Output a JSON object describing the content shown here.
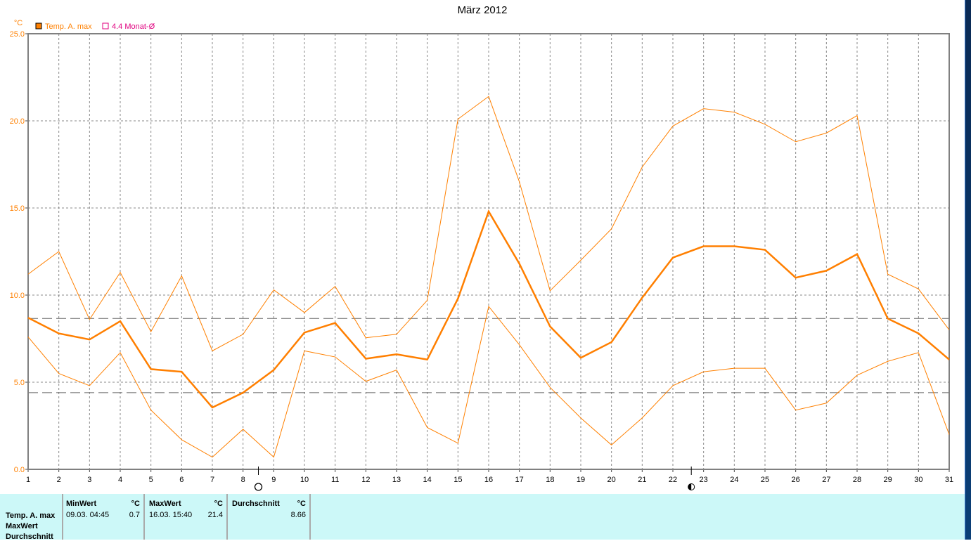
{
  "chart_data": {
    "type": "line",
    "title": "März 2012",
    "ylabel": "°C",
    "ylim": [
      0,
      25
    ],
    "yticks": [
      "0.0",
      "5.0",
      "10.0",
      "15.0",
      "20.0",
      "25.0"
    ],
    "xlim": [
      1,
      31
    ],
    "categories": [
      1,
      2,
      3,
      4,
      5,
      6,
      7,
      8,
      9,
      10,
      11,
      12,
      13,
      14,
      15,
      16,
      17,
      18,
      19,
      20,
      21,
      22,
      23,
      24,
      25,
      26,
      27,
      28,
      29,
      30,
      31
    ],
    "grid": true,
    "legend": {
      "placement": "top-left",
      "entries": [
        {
          "label": "Temp. A. max",
          "color": "#ff8000",
          "symbol": "filled-square"
        },
        {
          "label": "4.4 Monat-Ø",
          "color": "#e0007f",
          "symbol": "open-square"
        }
      ]
    },
    "series": [
      {
        "name": "Temp. A. max",
        "role": "mean",
        "color": "#ff7f00",
        "values": [
          8.7,
          7.8,
          7.45,
          8.5,
          5.75,
          5.6,
          3.55,
          4.4,
          5.7,
          7.85,
          8.4,
          6.35,
          6.6,
          6.3,
          9.8,
          14.8,
          11.8,
          8.2,
          6.4,
          7.3,
          9.85,
          12.15,
          12.8,
          12.8,
          12.6,
          11.0,
          11.4,
          12.35,
          8.65,
          7.8,
          6.3
        ]
      },
      {
        "role": "max",
        "color": "#ff8000",
        "values": [
          11.2,
          12.5,
          8.6,
          11.3,
          7.9,
          11.1,
          6.8,
          7.75,
          10.3,
          9.0,
          10.5,
          7.55,
          7.75,
          9.7,
          20.1,
          21.4,
          16.5,
          10.25,
          12.0,
          13.8,
          17.35,
          19.7,
          20.7,
          20.5,
          19.8,
          18.8,
          19.3,
          20.3,
          11.2,
          10.35,
          8.0
        ]
      },
      {
        "role": "min",
        "color": "#ff8000",
        "values": [
          7.6,
          5.5,
          4.8,
          6.7,
          3.4,
          1.7,
          0.7,
          2.3,
          0.7,
          6.8,
          6.45,
          5.05,
          5.7,
          2.4,
          1.5,
          9.35,
          7.15,
          4.7,
          2.95,
          1.4,
          2.95,
          4.8,
          5.6,
          5.8,
          5.8,
          3.4,
          3.8,
          5.4,
          6.2,
          6.7,
          2.0
        ]
      }
    ],
    "reference_lines": [
      {
        "value": 8.66
      },
      {
        "value": 4.4
      }
    ],
    "moon_phases": [
      {
        "day": 8.5,
        "phase": "full-moon"
      },
      {
        "day": 22.6,
        "phase": "new-moon"
      }
    ]
  },
  "table": {
    "row_labels": [
      "Temp. A. max",
      "MaxWert",
      "Durchschnitt"
    ],
    "min": {
      "header": "MinWert",
      "unit": "°C",
      "date": "09.03.  04:45",
      "value": "0.7"
    },
    "max": {
      "header": "MaxWert",
      "unit": "°C",
      "date": "16.03.  15:40",
      "value": "21.4"
    },
    "avg": {
      "header": "Durchschnitt",
      "unit": "°C",
      "value": "8.66"
    }
  }
}
